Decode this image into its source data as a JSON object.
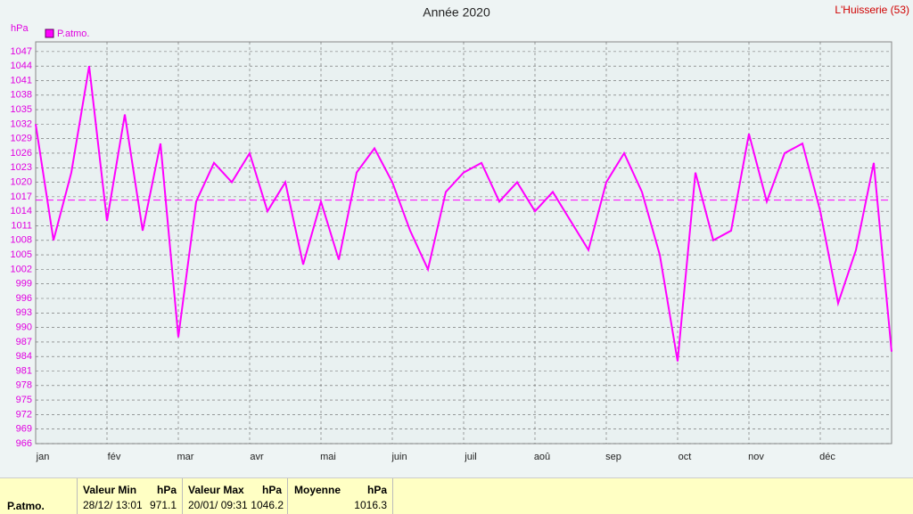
{
  "chart_data": {
    "type": "line",
    "title": "Année 2020",
    "station": "L'Huisserie (53)",
    "y_label": "hPa",
    "categories": [
      "jan",
      null,
      null,
      null,
      "fév",
      null,
      null,
      null,
      "mar",
      null,
      null,
      null,
      "avr",
      null,
      null,
      null,
      "mai",
      null,
      null,
      null,
      "juin",
      null,
      null,
      null,
      "juil",
      null,
      null,
      null,
      "aoû",
      null,
      null,
      null,
      "sep",
      null,
      null,
      null,
      "oct",
      null,
      null,
      null,
      "nov",
      null,
      null,
      null,
      "déc",
      null,
      null,
      null,
      null
    ],
    "series": [
      {
        "name": "P.atmo.",
        "color": "#ff00ff",
        "values": [
          1032,
          1008,
          1022,
          1044,
          1012,
          1034,
          1010,
          1028,
          988,
          1016,
          1024,
          1020,
          1026,
          1014,
          1020,
          1003,
          1016,
          1004,
          1022,
          1027,
          1020,
          1010,
          1002,
          1018,
          1022,
          1024,
          1016,
          1020,
          1014,
          1018,
          1012,
          1006,
          1020,
          1026,
          1018,
          1005,
          983,
          1022,
          1008,
          1010,
          1030,
          1016,
          1026,
          1028,
          1014,
          995,
          1006,
          1024,
          985
        ]
      }
    ],
    "ylim": [
      966,
      1049
    ],
    "yticks": [
      966,
      969,
      972,
      975,
      978,
      981,
      984,
      987,
      990,
      993,
      996,
      999,
      1002,
      1005,
      1008,
      1011,
      1014,
      1017,
      1020,
      1023,
      1026,
      1029,
      1032,
      1035,
      1038,
      1041,
      1044,
      1047
    ],
    "grid": true
  },
  "summary": {
    "series": "P.atmo.",
    "min": {
      "label": "Valeur Min",
      "unit": "hPa",
      "date": "28/12/ 13:01",
      "value": 971.1
    },
    "max": {
      "label": "Valeur Max",
      "unit": "hPa",
      "date": "20/01/ 09:31",
      "value": 1046.2
    },
    "mean": {
      "label": "Moyenne",
      "unit": "hPa",
      "value": 1016.3
    }
  }
}
